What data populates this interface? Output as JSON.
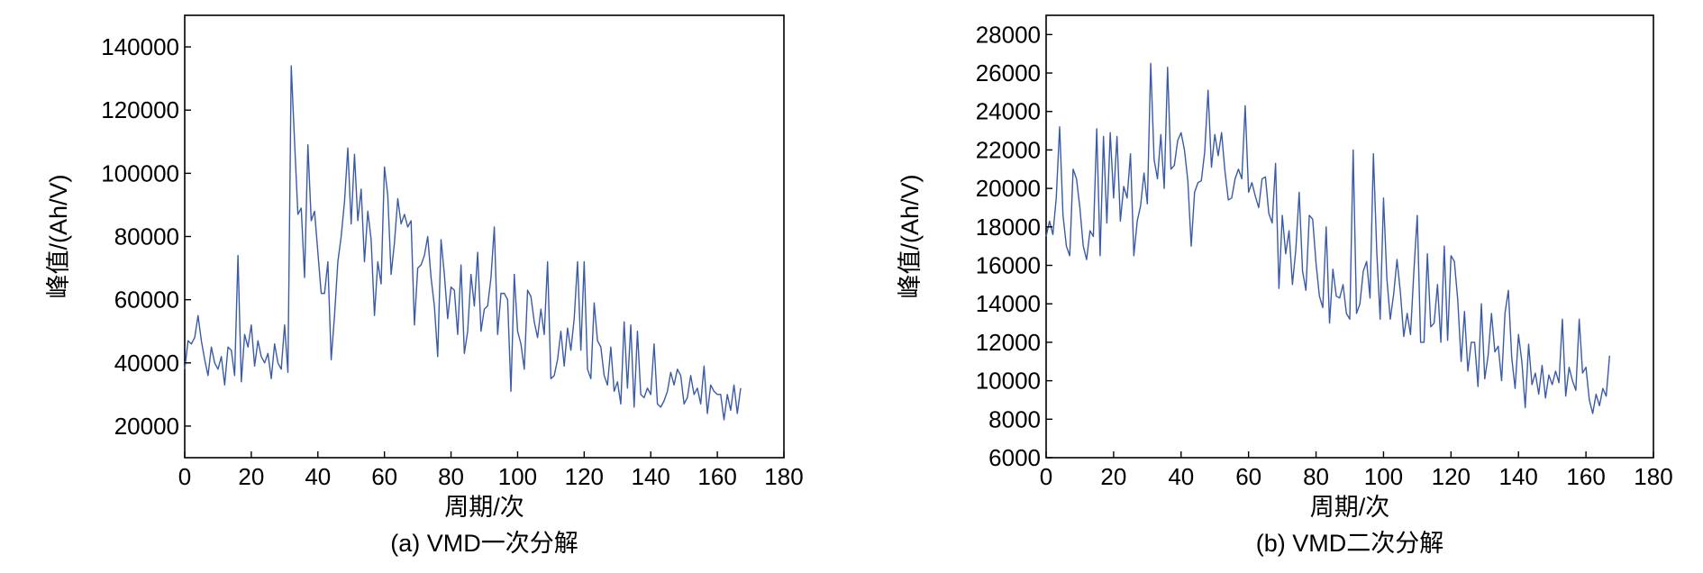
{
  "figure": {
    "line_color": "#3a5ba8",
    "axis_color": "#000000",
    "background": "#ffffff"
  },
  "chart_data": [
    {
      "type": "line",
      "caption": "(a) VMD一次分解",
      "xlabel": "周期/次",
      "ylabel": "峰值/(Ah/V)",
      "xlim": [
        0,
        180
      ],
      "ylim": [
        10000,
        150000
      ],
      "xticks": [
        0,
        20,
        40,
        60,
        80,
        100,
        120,
        140,
        160,
        180
      ],
      "yticks": [
        20000,
        40000,
        60000,
        80000,
        100000,
        120000,
        140000
      ],
      "grid": false,
      "series": [
        {
          "values": [
            38000,
            47000,
            46000,
            48000,
            55000,
            47000,
            41000,
            36000,
            45000,
            40000,
            38000,
            42000,
            33000,
            45000,
            44000,
            36000,
            74000,
            34000,
            49000,
            45000,
            52000,
            39000,
            47000,
            42000,
            40000,
            43000,
            35000,
            46000,
            40000,
            38000,
            52000,
            37000,
            134000,
            110000,
            87000,
            89000,
            67000,
            109000,
            85000,
            88000,
            75000,
            62000,
            62000,
            72000,
            41000,
            55000,
            72000,
            80000,
            91000,
            108000,
            84000,
            106000,
            85000,
            95000,
            72000,
            88000,
            79000,
            55000,
            72000,
            65000,
            102000,
            93000,
            68000,
            78000,
            92000,
            84000,
            87000,
            83000,
            85000,
            52000,
            70000,
            71000,
            74000,
            80000,
            67000,
            58000,
            42000,
            79000,
            68000,
            54000,
            64000,
            63000,
            49000,
            71000,
            43000,
            50000,
            68000,
            58000,
            75000,
            50000,
            57000,
            58000,
            67000,
            83000,
            49000,
            62000,
            62000,
            60000,
            31000,
            68000,
            50000,
            46000,
            38000,
            63000,
            61000,
            53000,
            48000,
            57000,
            49000,
            72000,
            35000,
            36000,
            41000,
            50000,
            39000,
            51000,
            44000,
            54000,
            72000,
            44000,
            72000,
            38000,
            35000,
            59000,
            47000,
            45000,
            36000,
            33000,
            45000,
            31000,
            34000,
            27000,
            53000,
            32000,
            52000,
            26000,
            50000,
            30000,
            29000,
            32000,
            30000,
            46000,
            27000,
            26000,
            28000,
            31000,
            37000,
            33000,
            38000,
            36000,
            27000,
            29000,
            36000,
            30000,
            32000,
            27000,
            39000,
            24000,
            33000,
            31000,
            30000,
            30000,
            22000,
            30000,
            25000,
            33000,
            24000,
            32000
          ]
        }
      ]
    },
    {
      "type": "line",
      "caption": "(b) VMD二次分解",
      "xlabel": "周期/次",
      "ylabel": "峰值/(Ah/V)",
      "xlim": [
        0,
        180
      ],
      "ylim": [
        6000,
        29000
      ],
      "xticks": [
        0,
        20,
        40,
        60,
        80,
        100,
        120,
        140,
        160,
        180
      ],
      "yticks": [
        6000,
        8000,
        10000,
        12000,
        14000,
        16000,
        18000,
        20000,
        22000,
        24000,
        26000,
        28000
      ],
      "grid": false,
      "series": [
        {
          "values": [
            17500,
            18300,
            17600,
            19500,
            23200,
            18600,
            17000,
            16500,
            21000,
            20500,
            19000,
            17000,
            16300,
            17800,
            17500,
            23100,
            16500,
            22700,
            18200,
            22900,
            19500,
            22700,
            18300,
            20100,
            19500,
            21800,
            16500,
            18300,
            19100,
            20800,
            19200,
            26500,
            21500,
            20500,
            22800,
            20000,
            26300,
            21000,
            21200,
            22500,
            22900,
            22000,
            20400,
            17000,
            19800,
            20300,
            20400,
            21900,
            25100,
            21100,
            22800,
            21700,
            22900,
            20900,
            19400,
            19500,
            20500,
            21000,
            20500,
            24300,
            19800,
            20300,
            19600,
            19000,
            20500,
            20600,
            18700,
            18200,
            21300,
            14800,
            18600,
            16600,
            17800,
            15000,
            16800,
            19800,
            15700,
            14700,
            18600,
            18400,
            16100,
            14400,
            13800,
            18000,
            13000,
            15800,
            14400,
            14300,
            15000,
            13500,
            13200,
            22000,
            13500,
            14000,
            15700,
            16200,
            14300,
            21800,
            16700,
            13200,
            19500,
            15300,
            13200,
            14500,
            16300,
            14600,
            12300,
            13500,
            12400,
            15700,
            18600,
            12000,
            12000,
            16600,
            12800,
            13000,
            15000,
            12000,
            17000,
            12100,
            16500,
            16200,
            14200,
            11000,
            13600,
            10500,
            12000,
            12000,
            9700,
            14000,
            10100,
            11300,
            13500,
            11500,
            11800,
            10000,
            13500,
            14700,
            11200,
            9600,
            12400,
            11000,
            8600,
            11900,
            9800,
            10400,
            9300,
            10800,
            9100,
            10300,
            9800,
            10500,
            9900,
            13200,
            9200,
            10700,
            10000,
            9500,
            13200,
            10400,
            10700,
            9000,
            8300,
            9300,
            8700,
            9600,
            9200,
            11300
          ]
        }
      ]
    }
  ]
}
